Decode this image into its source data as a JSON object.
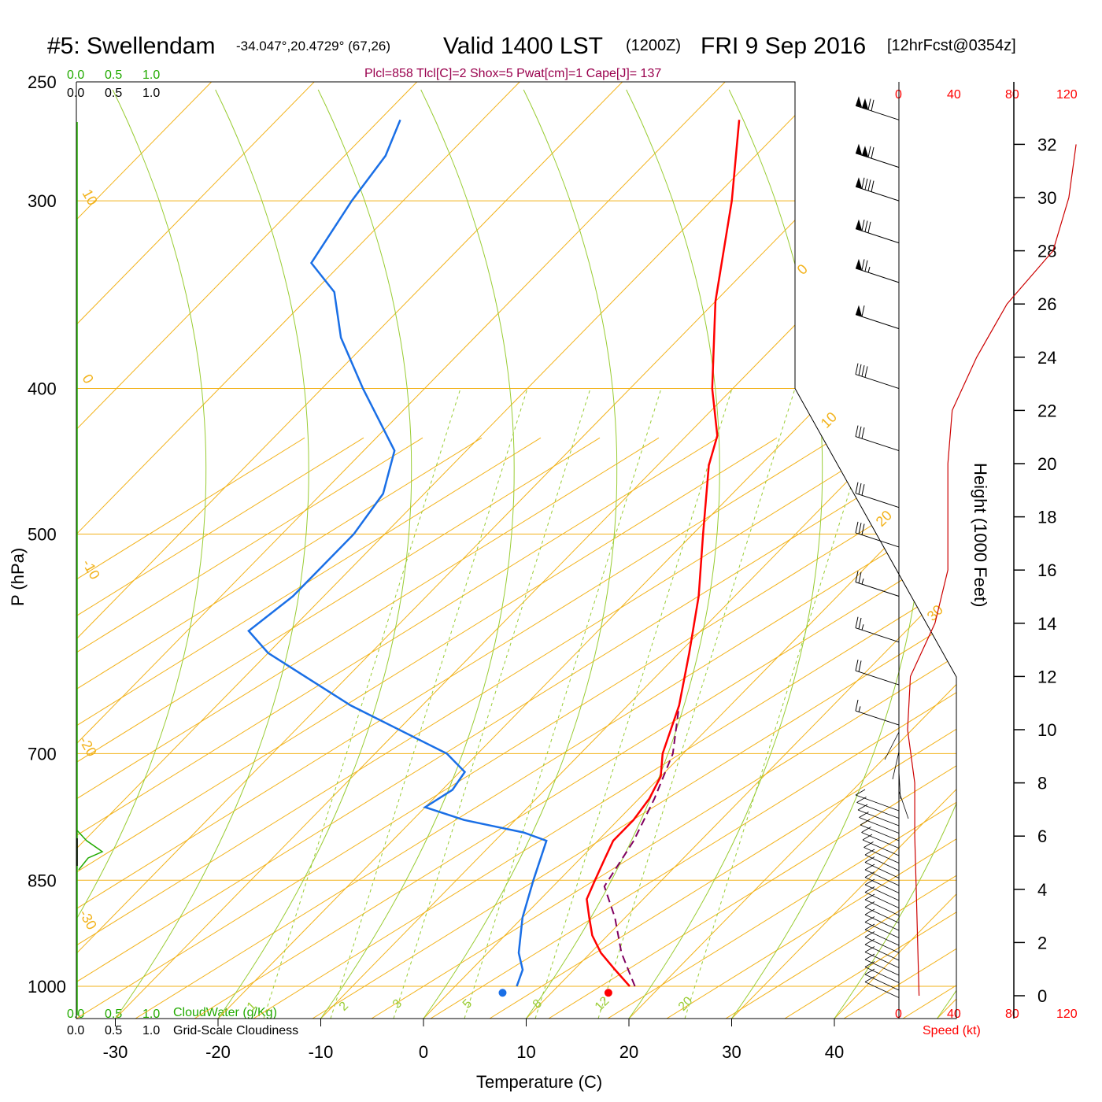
{
  "header": {
    "station": "#5: Swellendam",
    "coords": "-34.047°,20.4729° (67,26)",
    "valid": "Valid 1400 LST",
    "zulu": "(1200Z)",
    "date": "FRI 9 Sep 2016",
    "forecast": "[12hrFcst@0354z]"
  },
  "params_line": "Plcl=858 Tlcl[C]=2 Shox=5 Pwat[cm]=1 Cape[J]= 137",
  "cloud_scale": {
    "top_green": [
      "0.0",
      "0.5",
      "1.0"
    ],
    "top_black": [
      "0.0",
      "0.5",
      "1.0"
    ],
    "bottom_green": [
      "0.0",
      "0.5",
      "1.0"
    ],
    "bottom_black": [
      "0.0",
      "0.5",
      "1.0"
    ],
    "cloudwater_label": "CloudWater (g/Kg)",
    "cloudiness_label": "Grid-Scale Cloudiness"
  },
  "speed_axis": {
    "ticks_top": [
      "0",
      "40",
      "80",
      "120"
    ],
    "ticks_bottom": [
      "0",
      "40",
      "80",
      "120"
    ],
    "label": "Speed (kt)"
  },
  "axes": {
    "ylabel": "P (hPa)",
    "xlabel": "Temperature (C)",
    "height_label": "Height (1000 Feet)"
  },
  "colors": {
    "temperature": "#ff0000",
    "dewpoint": "#1a6fe6",
    "parcel": "#800060",
    "isotherm": "#f2b21a",
    "adiabat": "#99cc33",
    "wind_speed": "#cc0000",
    "cloudwater": "#22aa00"
  },
  "chart_data": {
    "type": "skew-t",
    "pressure_ticks": [
      250,
      300,
      400,
      500,
      700,
      850,
      1000
    ],
    "temp_ticks": [
      -30,
      -20,
      -10,
      0,
      10,
      20,
      30,
      40
    ],
    "height_ticks_kft": [
      0,
      2,
      4,
      6,
      8,
      10,
      12,
      14,
      16,
      18,
      20,
      22,
      24,
      26,
      28,
      30,
      32
    ],
    "isotherm_labels": [
      "10",
      "0",
      "-10",
      "-20",
      "-30",
      "0",
      "10",
      "20",
      "30"
    ],
    "mixing_ratio_labels": [
      "1",
      "2",
      "3",
      "5",
      "8",
      "12",
      "20"
    ],
    "surface_temperature_c": 18,
    "surface_dewpoint_c": 7.7,
    "temperature_profile": [
      {
        "p": 1000,
        "t": 17.0
      },
      {
        "p": 975,
        "t": 14.0
      },
      {
        "p": 950,
        "t": 11.0
      },
      {
        "p": 925,
        "t": 8.5
      },
      {
        "p": 900,
        "t": 6.5
      },
      {
        "p": 875,
        "t": 4.5
      },
      {
        "p": 850,
        "t": 3.5
      },
      {
        "p": 825,
        "t": 2.5
      },
      {
        "p": 800,
        "t": 1.5
      },
      {
        "p": 775,
        "t": 1.5
      },
      {
        "p": 750,
        "t": 1.0
      },
      {
        "p": 725,
        "t": 0.0
      },
      {
        "p": 700,
        "t": -2.0
      },
      {
        "p": 650,
        "t": -5.0
      },
      {
        "p": 600,
        "t": -9.0
      },
      {
        "p": 550,
        "t": -13.5
      },
      {
        "p": 500,
        "t": -19.0
      },
      {
        "p": 450,
        "t": -25.0
      },
      {
        "p": 430,
        "t": -27.0
      },
      {
        "p": 400,
        "t": -32.0
      },
      {
        "p": 350,
        "t": -40.0
      },
      {
        "p": 300,
        "t": -48.0
      },
      {
        "p": 265,
        "t": -55.0
      }
    ],
    "dewpoint_profile": [
      {
        "p": 1000,
        "t": 6.0
      },
      {
        "p": 975,
        "t": 5.0
      },
      {
        "p": 950,
        "t": 3.0
      },
      {
        "p": 900,
        "t": 0.0
      },
      {
        "p": 850,
        "t": -2.5
      },
      {
        "p": 800,
        "t": -5.0
      },
      {
        "p": 790,
        "t": -8.0
      },
      {
        "p": 775,
        "t": -15.0
      },
      {
        "p": 760,
        "t": -20.0
      },
      {
        "p": 740,
        "t": -19.0
      },
      {
        "p": 720,
        "t": -19.5
      },
      {
        "p": 700,
        "t": -23.0
      },
      {
        "p": 650,
        "t": -37.0
      },
      {
        "p": 600,
        "t": -50.0
      },
      {
        "p": 580,
        "t": -54.0
      },
      {
        "p": 550,
        "t": -53.0
      },
      {
        "p": 500,
        "t": -53.0
      },
      {
        "p": 470,
        "t": -54.0
      },
      {
        "p": 440,
        "t": -57.0
      },
      {
        "p": 400,
        "t": -66.0
      },
      {
        "p": 370,
        "t": -73.0
      },
      {
        "p": 345,
        "t": -78.0
      },
      {
        "p": 330,
        "t": -83.0
      },
      {
        "p": 300,
        "t": -85.0
      },
      {
        "p": 280,
        "t": -86.0
      },
      {
        "p": 265,
        "t": -88.0
      }
    ],
    "parcel_profile": [
      {
        "p": 1000,
        "t": 17.5
      },
      {
        "p": 950,
        "t": 13.0
      },
      {
        "p": 900,
        "t": 9.0
      },
      {
        "p": 858,
        "t": 5.0
      },
      {
        "p": 800,
        "t": 3.5
      },
      {
        "p": 750,
        "t": 1.5
      },
      {
        "p": 700,
        "t": -1.0
      },
      {
        "p": 650,
        "t": -5.0
      }
    ],
    "wind_speed_profile_kt": [
      {
        "h": 0,
        "s": 14
      },
      {
        "h": 2,
        "s": 13
      },
      {
        "h": 4,
        "s": 12
      },
      {
        "h": 6,
        "s": 11
      },
      {
        "h": 8,
        "s": 11
      },
      {
        "h": 10,
        "s": 6
      },
      {
        "h": 12,
        "s": 8
      },
      {
        "h": 14,
        "s": 25
      },
      {
        "h": 16,
        "s": 34
      },
      {
        "h": 18,
        "s": 34
      },
      {
        "h": 20,
        "s": 34
      },
      {
        "h": 22,
        "s": 37
      },
      {
        "h": 24,
        "s": 54
      },
      {
        "h": 26,
        "s": 75
      },
      {
        "h": 28,
        "s": 107
      },
      {
        "h": 30,
        "s": 118
      },
      {
        "h": 32,
        "s": 123
      }
    ],
    "wind_barbs": [
      {
        "p": 265,
        "speed_kt": 120
      },
      {
        "p": 285,
        "speed_kt": 120
      },
      {
        "p": 300,
        "speed_kt": 90
      },
      {
        "p": 320,
        "speed_kt": 80
      },
      {
        "p": 340,
        "speed_kt": 75
      },
      {
        "p": 365,
        "speed_kt": 60
      },
      {
        "p": 400,
        "speed_kt": 40
      },
      {
        "p": 440,
        "speed_kt": 30
      },
      {
        "p": 480,
        "speed_kt": 30
      },
      {
        "p": 510,
        "speed_kt": 30
      },
      {
        "p": 550,
        "speed_kt": 25
      },
      {
        "p": 590,
        "speed_kt": 25
      },
      {
        "p": 630,
        "speed_kt": 20
      },
      {
        "p": 670,
        "speed_kt": 15
      }
    ]
  }
}
